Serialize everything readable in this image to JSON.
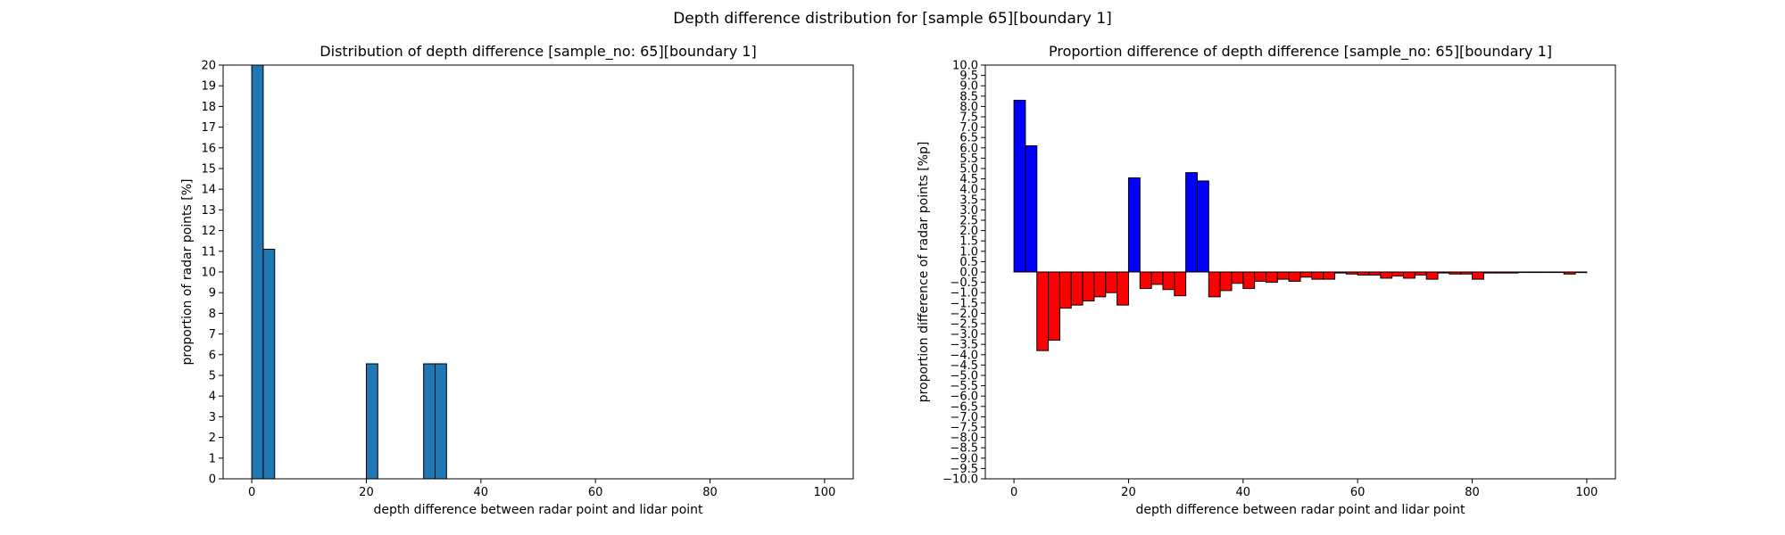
{
  "figure": {
    "suptitle": "Depth difference distribution for [sample 65][boundary 1]"
  },
  "chart_data": [
    {
      "type": "bar",
      "title": "Distribution of depth difference [sample_no: 65][boundary 1]",
      "xlabel": "depth difference between radar point and lidar point",
      "ylabel": "proportion of radar points [%]",
      "xlim": [
        -5,
        105
      ],
      "ylim": [
        0,
        20
      ],
      "xticks": [
        0,
        20,
        40,
        60,
        80,
        100
      ],
      "yticks": [
        0,
        1,
        2,
        3,
        4,
        5,
        6,
        7,
        8,
        9,
        10,
        11,
        12,
        13,
        14,
        15,
        16,
        17,
        18,
        19,
        20
      ],
      "bin_width": 2,
      "bar_color": "#1f77b4",
      "grid": false,
      "bars": [
        {
          "x0": 0,
          "x1": 2,
          "value": 20
        },
        {
          "x0": 2,
          "x1": 4,
          "value": 11.1
        },
        {
          "x0": 20,
          "x1": 22,
          "value": 5.56
        },
        {
          "x0": 30,
          "x1": 32,
          "value": 5.56
        },
        {
          "x0": 32,
          "x1": 34,
          "value": 5.56
        }
      ]
    },
    {
      "type": "bar",
      "title": "Proportion difference of depth difference [sample_no: 65][boundary 1]",
      "xlabel": "depth difference between radar point and lidar point",
      "ylabel": "proportion difference of radar points [%p]",
      "xlim": [
        -5,
        105
      ],
      "ylim": [
        -10,
        10
      ],
      "xticks": [
        0,
        20,
        40,
        60,
        80,
        100
      ],
      "yticks": [
        10.0,
        9.5,
        9.0,
        8.5,
        8.0,
        7.5,
        7.0,
        6.5,
        6.0,
        5.5,
        5.0,
        4.5,
        4.0,
        3.5,
        3.0,
        2.5,
        2.0,
        1.5,
        1.0,
        0.5,
        0.0,
        -0.5,
        -1.0,
        -1.5,
        -2.0,
        -2.5,
        -3.0,
        -3.5,
        -4.0,
        -4.5,
        -5.0,
        -5.5,
        -6.0,
        -6.5,
        -7.0,
        -7.5,
        -8.0,
        -8.5,
        -9.0,
        -9.5,
        -10.0
      ],
      "bin_width": 2,
      "positive_color": "#0000ff",
      "negative_color": "#ff0000",
      "grid": false,
      "bars": [
        {
          "x0": 0,
          "x1": 2,
          "value": 8.3
        },
        {
          "x0": 2,
          "x1": 4,
          "value": 6.1
        },
        {
          "x0": 4,
          "x1": 6,
          "value": -3.8
        },
        {
          "x0": 6,
          "x1": 8,
          "value": -3.3
        },
        {
          "x0": 8,
          "x1": 10,
          "value": -1.75
        },
        {
          "x0": 10,
          "x1": 12,
          "value": -1.6
        },
        {
          "x0": 12,
          "x1": 14,
          "value": -1.4
        },
        {
          "x0": 14,
          "x1": 16,
          "value": -1.2
        },
        {
          "x0": 16,
          "x1": 18,
          "value": -1.0
        },
        {
          "x0": 18,
          "x1": 20,
          "value": -1.6
        },
        {
          "x0": 20,
          "x1": 22,
          "value": 4.55
        },
        {
          "x0": 22,
          "x1": 24,
          "value": -0.8
        },
        {
          "x0": 24,
          "x1": 26,
          "value": -0.6
        },
        {
          "x0": 26,
          "x1": 28,
          "value": -0.85
        },
        {
          "x0": 28,
          "x1": 30,
          "value": -1.15
        },
        {
          "x0": 30,
          "x1": 32,
          "value": 4.8
        },
        {
          "x0": 32,
          "x1": 34,
          "value": 4.4
        },
        {
          "x0": 34,
          "x1": 36,
          "value": -1.2
        },
        {
          "x0": 36,
          "x1": 38,
          "value": -0.9
        },
        {
          "x0": 38,
          "x1": 40,
          "value": -0.55
        },
        {
          "x0": 40,
          "x1": 42,
          "value": -0.8
        },
        {
          "x0": 42,
          "x1": 44,
          "value": -0.45
        },
        {
          "x0": 44,
          "x1": 46,
          "value": -0.5
        },
        {
          "x0": 46,
          "x1": 48,
          "value": -0.35
        },
        {
          "x0": 48,
          "x1": 50,
          "value": -0.45
        },
        {
          "x0": 50,
          "x1": 52,
          "value": -0.25
        },
        {
          "x0": 52,
          "x1": 54,
          "value": -0.35
        },
        {
          "x0": 54,
          "x1": 56,
          "value": -0.35
        },
        {
          "x0": 56,
          "x1": 58,
          "value": -0.05
        },
        {
          "x0": 58,
          "x1": 60,
          "value": -0.1
        },
        {
          "x0": 60,
          "x1": 62,
          "value": -0.15
        },
        {
          "x0": 62,
          "x1": 64,
          "value": -0.15
        },
        {
          "x0": 64,
          "x1": 66,
          "value": -0.3
        },
        {
          "x0": 66,
          "x1": 68,
          "value": -0.2
        },
        {
          "x0": 68,
          "x1": 70,
          "value": -0.3
        },
        {
          "x0": 70,
          "x1": 72,
          "value": -0.15
        },
        {
          "x0": 72,
          "x1": 74,
          "value": -0.35
        },
        {
          "x0": 74,
          "x1": 76,
          "value": -0.05
        },
        {
          "x0": 76,
          "x1": 78,
          "value": -0.1
        },
        {
          "x0": 78,
          "x1": 80,
          "value": -0.1
        },
        {
          "x0": 80,
          "x1": 82,
          "value": -0.35
        },
        {
          "x0": 82,
          "x1": 84,
          "value": -0.05
        },
        {
          "x0": 84,
          "x1": 86,
          "value": -0.05
        },
        {
          "x0": 86,
          "x1": 88,
          "value": -0.05
        },
        {
          "x0": 88,
          "x1": 90,
          "value": -0.02
        },
        {
          "x0": 90,
          "x1": 92,
          "value": -0.02
        },
        {
          "x0": 92,
          "x1": 94,
          "value": -0.02
        },
        {
          "x0": 94,
          "x1": 96,
          "value": -0.02
        },
        {
          "x0": 96,
          "x1": 98,
          "value": -0.1
        },
        {
          "x0": 98,
          "x1": 100,
          "value": -0.03
        }
      ]
    }
  ]
}
